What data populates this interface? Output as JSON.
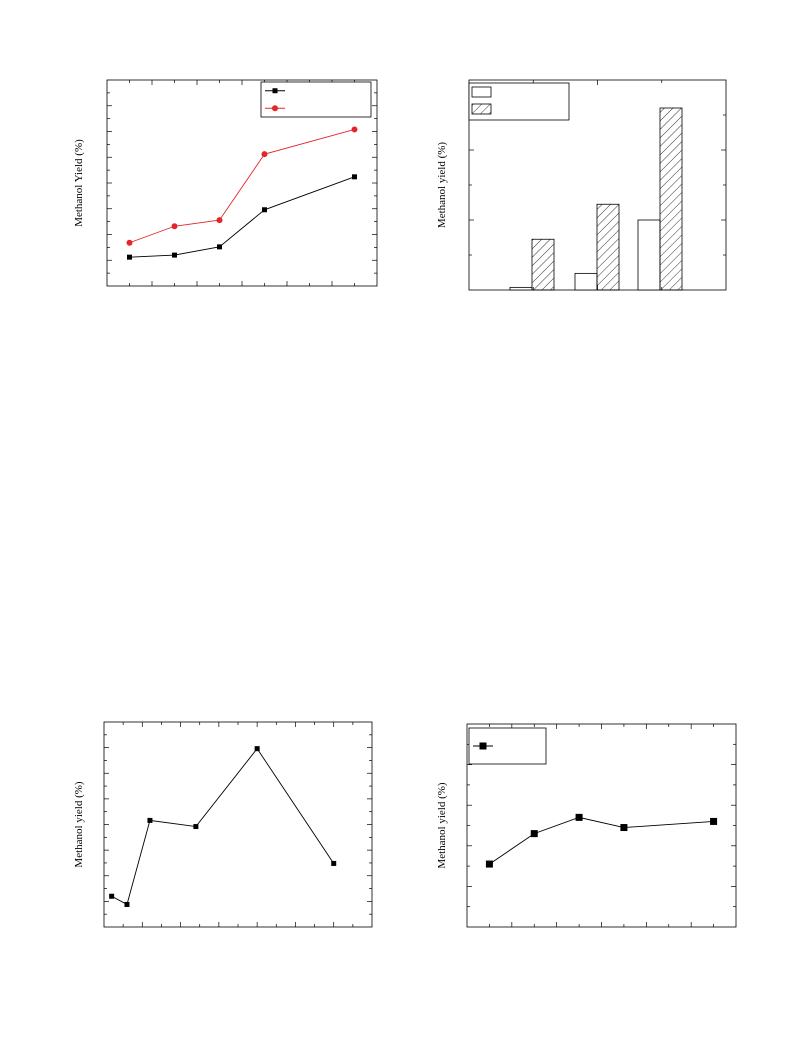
{
  "chart_data": [
    {
      "type": "line",
      "xlabel": "",
      "ylabel": "Methanol Yield (%)",
      "xlim": [
        0,
        6
      ],
      "ylim": [
        0,
        10
      ],
      "legend": "top-right",
      "grid": false,
      "series": [
        {
          "color": "#000000",
          "marker": "square",
          "x": [
            0.5,
            1.5,
            2.5,
            3.5,
            5.5
          ],
          "y": [
            1.4,
            1.5,
            1.9,
            3.7,
            5.3
          ]
        },
        {
          "color": "#e3262c",
          "marker": "circle",
          "x": [
            0.5,
            1.5,
            2.5,
            3.5,
            5.5
          ],
          "y": [
            2.1,
            2.9,
            3.2,
            6.4,
            7.6
          ]
        }
      ]
    },
    {
      "type": "bar",
      "xlabel": "",
      "ylabel": "Methanol yield (%)",
      "ylim": [
        0,
        12
      ],
      "legend": "top-left",
      "grid": false,
      "categories": [
        "",
        "",
        ""
      ],
      "series": [
        {
          "pattern": "open",
          "values": [
            0.15,
            0.95,
            4.0
          ]
        },
        {
          "pattern": "hatched",
          "values": [
            2.9,
            4.9,
            10.4
          ]
        }
      ]
    },
    {
      "type": "line",
      "xlabel": "",
      "ylabel": "Methanol yield (%)",
      "xlim": [
        0,
        7
      ],
      "ylim": [
        0,
        10
      ],
      "legend": "none",
      "grid": false,
      "series": [
        {
          "color": "#000000",
          "marker": "square",
          "x": [
            0.2,
            0.6,
            1.2,
            2.4,
            4.0,
            6.0
          ],
          "y": [
            1.5,
            1.1,
            5.2,
            4.9,
            8.7,
            3.1
          ]
        }
      ]
    },
    {
      "type": "line",
      "xlabel": "",
      "ylabel": "Methanol yield (%)",
      "xlim": [
        0,
        12
      ],
      "ylim": [
        0,
        10
      ],
      "legend": "top-left",
      "grid": false,
      "series": [
        {
          "color": "#000000",
          "marker": "square",
          "x": [
            1,
            3,
            5,
            7,
            11
          ],
          "y": [
            3.1,
            4.6,
            5.4,
            4.9,
            5.2
          ]
        }
      ]
    }
  ]
}
